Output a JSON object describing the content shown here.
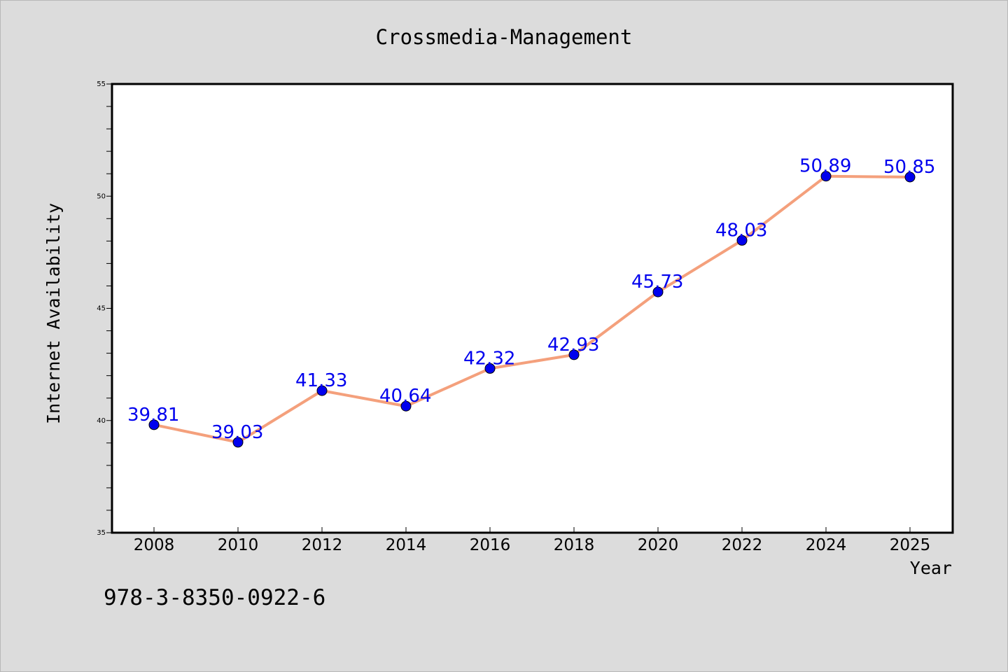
{
  "chart_data": {
    "type": "line",
    "title": "Crossmedia-Management",
    "xlabel": "Year",
    "ylabel": "Internet Availability",
    "categories": [
      "2008",
      "2010",
      "2012",
      "2014",
      "2016",
      "2018",
      "2020",
      "2022",
      "2024",
      "2025"
    ],
    "series": [
      {
        "values": [
          39.81,
          39.03,
          41.33,
          40.64,
          42.32,
          42.93,
          45.73,
          48.03,
          50.89,
          50.85
        ],
        "line_color": "#f4a07c",
        "marker_color": "#0000ee",
        "label_color": "#0000ee"
      }
    ],
    "data_labels": [
      "39.81",
      "39.03",
      "41.33",
      "40.64",
      "42.32",
      "42.93",
      "45.73",
      "48.03",
      "50.89",
      "50.85"
    ],
    "ylim": [
      35,
      55
    ],
    "yticks": [
      "35",
      "40",
      "45",
      "50",
      "55"
    ],
    "y_minor_step": 1,
    "grid": false,
    "legend": "none"
  },
  "footnote": "978-3-8350-0922-6",
  "colors": {
    "background": "#dcdcdc",
    "plot_background": "#ffffff",
    "axis": "#000000"
  }
}
